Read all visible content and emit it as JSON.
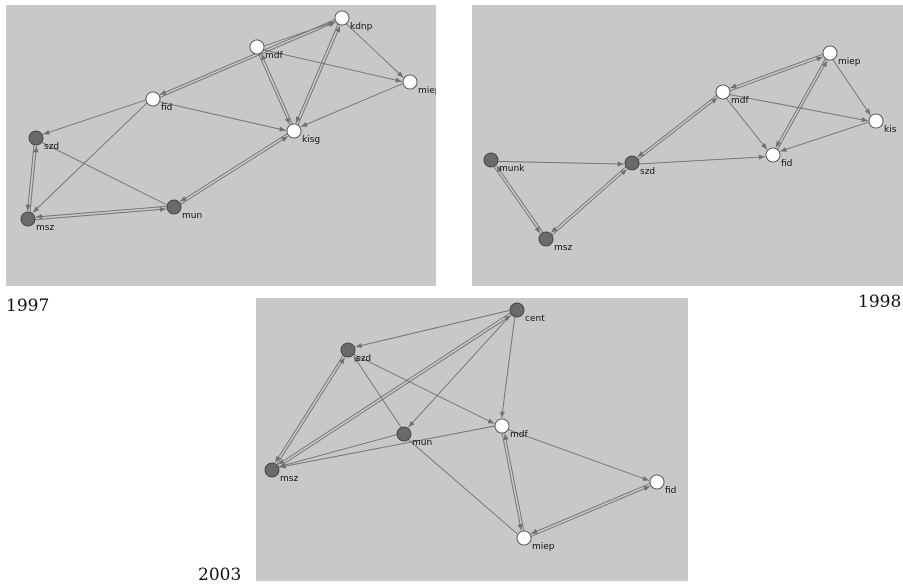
{
  "graphs": [
    {
      "id": "g1997",
      "year_label": "1997",
      "colors": {
        "dark": "#6a6a6a",
        "light": "#ffffff",
        "edge": "#707070"
      },
      "nodes": [
        {
          "id": "kdnp",
          "label": "kdnp",
          "fill": "light"
        },
        {
          "id": "mdf",
          "label": "mdf",
          "fill": "light"
        },
        {
          "id": "miep",
          "label": "miep",
          "fill": "light"
        },
        {
          "id": "fid",
          "label": "fid",
          "fill": "light"
        },
        {
          "id": "kisg",
          "label": "kisg",
          "fill": "light"
        },
        {
          "id": "szd",
          "label": "szd",
          "fill": "dark"
        },
        {
          "id": "mun",
          "label": "mun",
          "fill": "dark"
        },
        {
          "id": "msz",
          "label": "msz",
          "fill": "dark"
        }
      ],
      "edges": [
        {
          "from": "fid",
          "to": "kdnp",
          "arrow": true
        },
        {
          "from": "kdnp",
          "to": "fid",
          "arrow": true
        },
        {
          "from": "mdf",
          "to": "kdnp",
          "arrow": true
        },
        {
          "from": "kdnp",
          "to": "miep",
          "arrow": true
        },
        {
          "from": "kdnp",
          "to": "kisg",
          "arrow": true
        },
        {
          "from": "kisg",
          "to": "kdnp",
          "arrow": true
        },
        {
          "from": "mdf",
          "to": "miep",
          "arrow": true
        },
        {
          "from": "mdf",
          "to": "kisg",
          "arrow": true
        },
        {
          "from": "kisg",
          "to": "mdf",
          "arrow": true
        },
        {
          "from": "miep",
          "to": "kisg",
          "arrow": true
        },
        {
          "from": "fid",
          "to": "kisg",
          "arrow": true
        },
        {
          "from": "fid",
          "to": "szd",
          "arrow": true
        },
        {
          "from": "fid",
          "to": "msz",
          "arrow": true
        },
        {
          "from": "szd",
          "to": "msz",
          "arrow": true
        },
        {
          "from": "msz",
          "to": "szd",
          "arrow": true
        },
        {
          "from": "szd",
          "to": "mun",
          "arrow": false
        },
        {
          "from": "msz",
          "to": "mun",
          "arrow": true
        },
        {
          "from": "mun",
          "to": "msz",
          "arrow": true
        },
        {
          "from": "mun",
          "to": "kisg",
          "arrow": true
        },
        {
          "from": "kisg",
          "to": "mun",
          "arrow": true
        }
      ]
    },
    {
      "id": "g1998",
      "year_label": "1998",
      "colors": {
        "dark": "#6a6a6a",
        "light": "#ffffff",
        "edge": "#707070"
      },
      "nodes": [
        {
          "id": "miep",
          "label": "miep",
          "fill": "light"
        },
        {
          "id": "mdf",
          "label": "mdf",
          "fill": "light"
        },
        {
          "id": "kis",
          "label": "kis",
          "fill": "light"
        },
        {
          "id": "fid",
          "label": "fid",
          "fill": "light"
        },
        {
          "id": "munk",
          "label": "munk",
          "fill": "dark"
        },
        {
          "id": "szd",
          "label": "szd",
          "fill": "dark"
        },
        {
          "id": "msz",
          "label": "msz",
          "fill": "dark"
        }
      ],
      "edges": [
        {
          "from": "mdf",
          "to": "miep",
          "arrow": true
        },
        {
          "from": "miep",
          "to": "mdf",
          "arrow": true
        },
        {
          "from": "miep",
          "to": "kis",
          "arrow": true
        },
        {
          "from": "miep",
          "to": "fid",
          "arrow": true
        },
        {
          "from": "fid",
          "to": "miep",
          "arrow": true
        },
        {
          "from": "mdf",
          "to": "kis",
          "arrow": true
        },
        {
          "from": "mdf",
          "to": "fid",
          "arrow": true
        },
        {
          "from": "kis",
          "to": "fid",
          "arrow": true
        },
        {
          "from": "mdf",
          "to": "szd",
          "arrow": true
        },
        {
          "from": "szd",
          "to": "mdf",
          "arrow": true
        },
        {
          "from": "szd",
          "to": "fid",
          "arrow": true
        },
        {
          "from": "munk",
          "to": "szd",
          "arrow": true
        },
        {
          "from": "munk",
          "to": "msz",
          "arrow": true
        },
        {
          "from": "msz",
          "to": "munk",
          "arrow": true
        },
        {
          "from": "szd",
          "to": "msz",
          "arrow": true
        },
        {
          "from": "msz",
          "to": "szd",
          "arrow": true
        }
      ]
    },
    {
      "id": "g2003",
      "year_label": "2003",
      "colors": {
        "dark": "#6a6a6a",
        "light": "#ffffff",
        "edge": "#707070"
      },
      "nodes": [
        {
          "id": "cent",
          "label": "cent",
          "fill": "dark"
        },
        {
          "id": "szd",
          "label": "szd",
          "fill": "dark"
        },
        {
          "id": "mun",
          "label": "mun",
          "fill": "dark"
        },
        {
          "id": "mdf",
          "label": "mdf",
          "fill": "light"
        },
        {
          "id": "msz",
          "label": "msz",
          "fill": "dark"
        },
        {
          "id": "fid",
          "label": "fid",
          "fill": "light"
        },
        {
          "id": "miep",
          "label": "miep",
          "fill": "light"
        }
      ],
      "edges": [
        {
          "from": "cent",
          "to": "szd",
          "arrow": true
        },
        {
          "from": "cent",
          "to": "mun",
          "arrow": true
        },
        {
          "from": "cent",
          "to": "mdf",
          "arrow": true
        },
        {
          "from": "cent",
          "to": "msz",
          "arrow": true
        },
        {
          "from": "msz",
          "to": "cent",
          "arrow": true
        },
        {
          "from": "szd",
          "to": "mdf",
          "arrow": true
        },
        {
          "from": "mun",
          "to": "szd",
          "arrow": true
        },
        {
          "from": "msz",
          "to": "szd",
          "arrow": true
        },
        {
          "from": "szd",
          "to": "msz",
          "arrow": true
        },
        {
          "from": "mun",
          "to": "msz",
          "arrow": true
        },
        {
          "from": "mdf",
          "to": "msz",
          "arrow": true
        },
        {
          "from": "mdf",
          "to": "fid",
          "arrow": true
        },
        {
          "from": "mdf",
          "to": "miep",
          "arrow": true
        },
        {
          "from": "miep",
          "to": "mdf",
          "arrow": true
        },
        {
          "from": "mun",
          "to": "miep",
          "arrow": false
        },
        {
          "from": "miep",
          "to": "fid",
          "arrow": true
        },
        {
          "from": "fid",
          "to": "miep",
          "arrow": true
        }
      ]
    }
  ]
}
